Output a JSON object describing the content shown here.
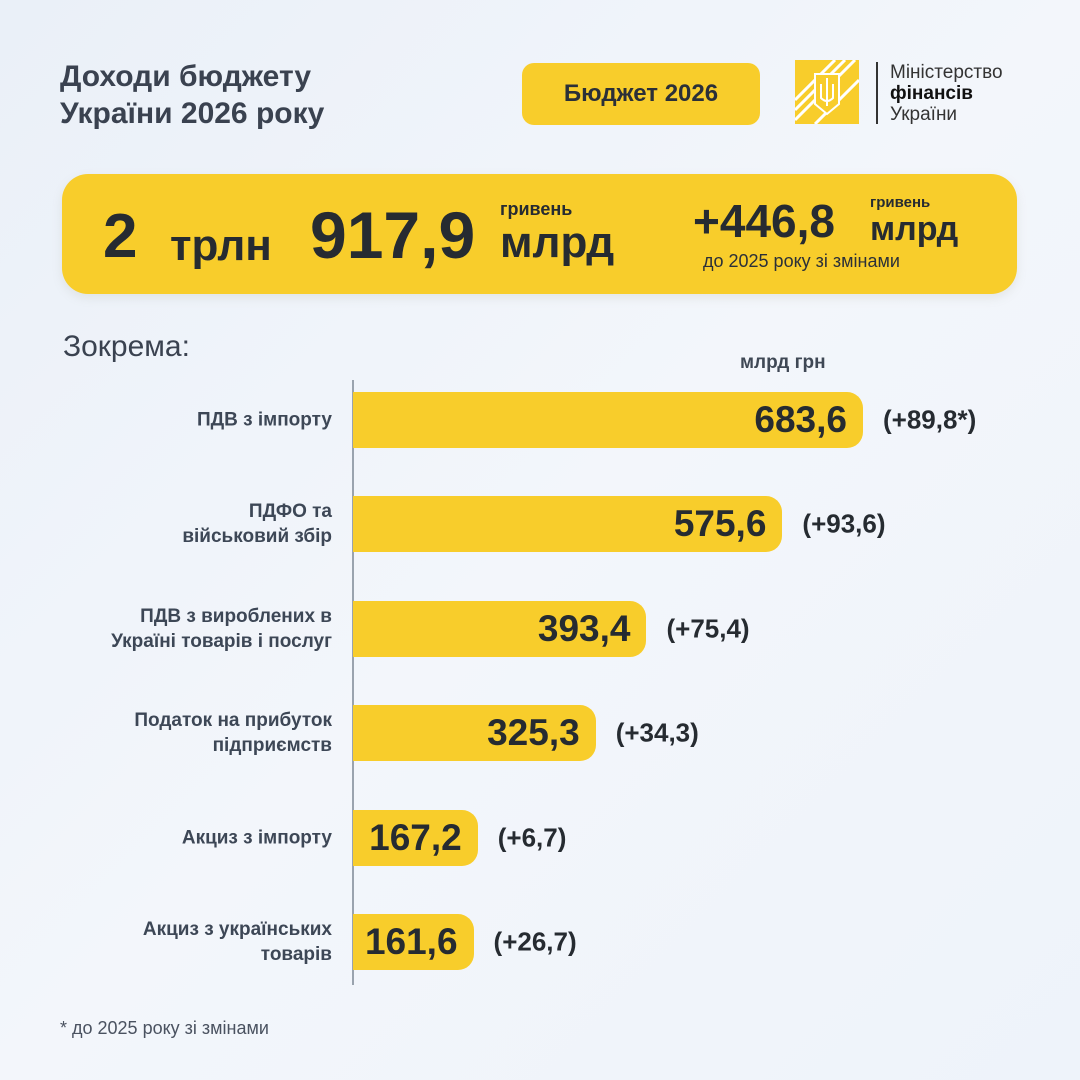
{
  "header": {
    "title_line1": "Доходи бюджету",
    "title_line2": "України 2026 року",
    "badge": "Бюджет 2026"
  },
  "logo": {
    "line1": "Міністерство",
    "line2": "фінансів",
    "line3": "України"
  },
  "banner": {
    "trln": "2",
    "trln_label": "трлн",
    "mlrd": "917,9",
    "currency": "гривень",
    "mlrd_label": "млрд",
    "change": "+446,8",
    "change_currency": "гривень",
    "change_label": "млрд",
    "change_note": "до 2025 року зі змінами"
  },
  "section_label": "Зокрема:",
  "colors": {
    "bar": "#f8cd2b",
    "text": "#262b31"
  },
  "chart_data": {
    "type": "bar",
    "orientation": "horizontal",
    "ylabel": "",
    "xlabel": "",
    "unit_label": "млрд грн",
    "grid": false,
    "categories": [
      [
        "ПДВ з імпорту"
      ],
      [
        "ПДФО та",
        "військовий збір"
      ],
      [
        "ПДВ з вироблених в",
        "Україні товарів і послуг"
      ],
      [
        "Податок на прибуток",
        "підприємств"
      ],
      [
        "Акциз з імпорту"
      ],
      [
        "Акциз з українських",
        "товарів"
      ]
    ],
    "values": [
      683.6,
      575.6,
      393.4,
      325.3,
      167.2,
      161.6
    ],
    "value_labels": [
      "683,6",
      "575,6",
      "393,4",
      "325,3",
      "167,2",
      "161,6"
    ],
    "changes": [
      "(+89,8*)",
      "(+93,6)",
      "(+75,4)",
      "(+34,3)",
      "(+6,7)",
      "(+26,7)"
    ]
  },
  "footnote": "* до 2025 року зі змінами"
}
